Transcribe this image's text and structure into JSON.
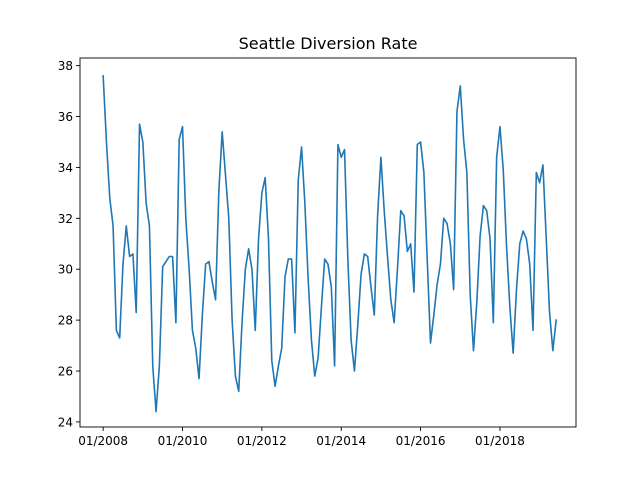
{
  "chart_data": {
    "type": "line",
    "title": "Seattle Diversion Rate",
    "xlabel": "",
    "ylabel": "",
    "x_start": "2008-01",
    "x_end": "2019-06",
    "x_frequency": "monthly",
    "xlim": [
      "2007-06",
      "2019-12"
    ],
    "ylim": [
      23.8,
      38.3
    ],
    "xticks": [
      {
        "date": "2008-01",
        "label": "01/2008"
      },
      {
        "date": "2010-01",
        "label": "01/2010"
      },
      {
        "date": "2012-01",
        "label": "01/2012"
      },
      {
        "date": "2014-01",
        "label": "01/2014"
      },
      {
        "date": "2016-01",
        "label": "01/2016"
      },
      {
        "date": "2018-01",
        "label": "01/2018"
      }
    ],
    "yticks": [
      24,
      26,
      28,
      30,
      32,
      34,
      36,
      38
    ],
    "grid": false,
    "legend": "none",
    "series": [
      {
        "color": "#1f77b4",
        "values": [
          37.6,
          35.0,
          32.8,
          31.7,
          27.6,
          27.3,
          30.2,
          31.7,
          30.5,
          30.6,
          28.3,
          35.7,
          35.0,
          32.6,
          31.7,
          26.2,
          24.4,
          26.2,
          30.1,
          30.3,
          30.5,
          30.5,
          27.9,
          35.1,
          35.6,
          32.0,
          30.0,
          27.6,
          26.9,
          25.7,
          28.2,
          30.2,
          30.3,
          29.5,
          28.8,
          33.1,
          35.4,
          33.7,
          32.0,
          28.0,
          25.8,
          25.2,
          27.9,
          30.0,
          30.8,
          30.0,
          27.6,
          31.2,
          33.0,
          33.6,
          31.2,
          26.4,
          25.4,
          26.2,
          26.9,
          29.7,
          30.4,
          30.4,
          27.5,
          33.5,
          34.8,
          32.6,
          29.6,
          27.2,
          25.8,
          26.5,
          28.5,
          30.4,
          30.2,
          29.3,
          26.2,
          34.9,
          34.4,
          34.7,
          30.4,
          27.2,
          26.0,
          27.8,
          29.8,
          30.6,
          30.5,
          29.3,
          28.2,
          32.1,
          34.4,
          32.3,
          30.5,
          28.8,
          27.9,
          30.0,
          32.3,
          32.1,
          30.7,
          31.0,
          29.1,
          34.9,
          35.0,
          33.8,
          30.4,
          27.1,
          28.2,
          29.4,
          30.2,
          32.0,
          31.8,
          31.0,
          29.2,
          36.2,
          37.2,
          35.1,
          33.8,
          29.0,
          26.8,
          28.7,
          31.3,
          32.5,
          32.3,
          31.2,
          27.9,
          34.4,
          35.6,
          33.9,
          30.9,
          28.5,
          26.7,
          29.2,
          31.0,
          31.5,
          31.2,
          30.2,
          27.6,
          33.8,
          33.4,
          34.1,
          31.2,
          28.3,
          26.8,
          28.0
        ]
      }
    ]
  }
}
